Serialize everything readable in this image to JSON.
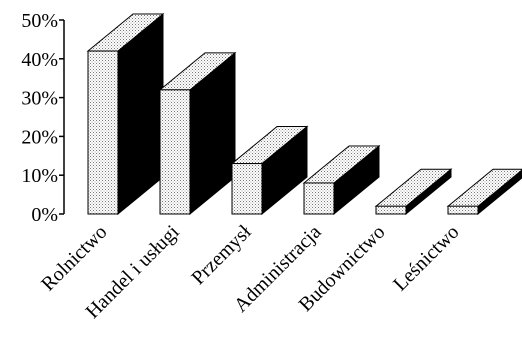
{
  "chart_data": {
    "type": "bar",
    "categories": [
      "Rolnictwo",
      "Handel i usługi",
      "Przemysł",
      "Administracja",
      "Budownictwo",
      "Leśnictwo"
    ],
    "values": [
      42,
      32,
      13,
      8,
      2,
      2
    ],
    "ylim": [
      0,
      50
    ],
    "yticks": [
      0,
      10,
      20,
      30,
      40,
      50
    ],
    "ytick_labels": [
      "0%",
      "10%",
      "20%",
      "30%",
      "40%",
      "50%"
    ],
    "grid": false,
    "legend": "none",
    "style": "3d-bar",
    "colors": {
      "front": "#eeeeee",
      "side": "#000000",
      "top": "#eeeeee",
      "stroke": "#000000"
    }
  }
}
